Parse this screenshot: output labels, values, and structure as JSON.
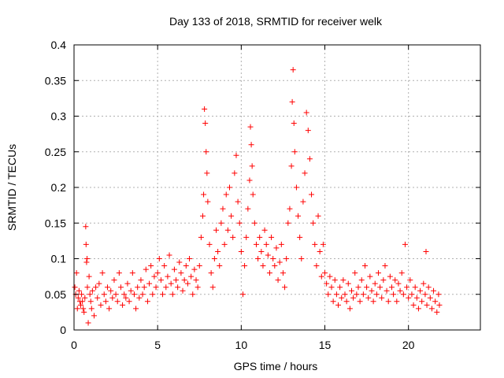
{
  "chart_data": {
    "type": "scatter",
    "title": "Day 133 of 2018, SRMTID for receiver welk",
    "xlabel": "GPS time / hours",
    "ylabel": "SRMTID / TECUs",
    "xlim": [
      0,
      24.3
    ],
    "ylim": [
      0,
      0.4
    ],
    "x_ticks": [
      0,
      5,
      10,
      15,
      20
    ],
    "x_tick_labels": [
      "0",
      "5",
      "10",
      "15",
      "20"
    ],
    "y_ticks": [
      0,
      0.05,
      0.1,
      0.15,
      0.2,
      0.25,
      0.3,
      0.35,
      0.4
    ],
    "y_tick_labels": [
      "0",
      "0.05",
      "0.1",
      "0.15",
      "0.2",
      "0.25",
      "0.3",
      "0.35",
      "0.4"
    ],
    "grid": true,
    "marker": "plus",
    "color": "#ff0000",
    "series": [
      {
        "name": "SRMTID",
        "points": [
          [
            0.05,
            0.06
          ],
          [
            0.1,
            0.05
          ],
          [
            0.15,
            0.08
          ],
          [
            0.2,
            0.03
          ],
          [
            0.25,
            0.045
          ],
          [
            0.3,
            0.055
          ],
          [
            0.35,
            0.04
          ],
          [
            0.4,
            0.035
          ],
          [
            0.45,
            0.05
          ],
          [
            0.5,
            0.04
          ],
          [
            0.55,
            0.03
          ],
          [
            0.6,
            0.025
          ],
          [
            0.65,
            0.045
          ],
          [
            0.7,
            0.145
          ],
          [
            0.72,
            0.12
          ],
          [
            0.75,
            0.095
          ],
          [
            0.78,
            0.1
          ],
          [
            0.8,
            0.06
          ],
          [
            0.85,
            0.01
          ],
          [
            0.9,
            0.075
          ],
          [
            0.95,
            0.05
          ],
          [
            1.0,
            0.04
          ],
          [
            1.05,
            0.03
          ],
          [
            1.1,
            0.055
          ],
          [
            1.2,
            0.02
          ],
          [
            1.3,
            0.06
          ],
          [
            1.4,
            0.045
          ],
          [
            1.5,
            0.065
          ],
          [
            1.6,
            0.035
          ],
          [
            1.7,
            0.08
          ],
          [
            1.8,
            0.05
          ],
          [
            1.9,
            0.04
          ],
          [
            2.0,
            0.06
          ],
          [
            2.1,
            0.03
          ],
          [
            2.2,
            0.055
          ],
          [
            2.3,
            0.045
          ],
          [
            2.4,
            0.07
          ],
          [
            2.5,
            0.05
          ],
          [
            2.6,
            0.04
          ],
          [
            2.7,
            0.08
          ],
          [
            2.8,
            0.06
          ],
          [
            2.9,
            0.035
          ],
          [
            3.0,
            0.05
          ],
          [
            3.1,
            0.045
          ],
          [
            3.2,
            0.065
          ],
          [
            3.3,
            0.04
          ],
          [
            3.4,
            0.055
          ],
          [
            3.5,
            0.08
          ],
          [
            3.6,
            0.05
          ],
          [
            3.7,
            0.03
          ],
          [
            3.8,
            0.06
          ],
          [
            3.9,
            0.045
          ],
          [
            4.0,
            0.07
          ],
          [
            4.1,
            0.05
          ],
          [
            4.2,
            0.06
          ],
          [
            4.3,
            0.085
          ],
          [
            4.4,
            0.04
          ],
          [
            4.5,
            0.065
          ],
          [
            4.6,
            0.09
          ],
          [
            4.7,
            0.05
          ],
          [
            4.8,
            0.075
          ],
          [
            4.9,
            0.06
          ],
          [
            5.0,
            0.08
          ],
          [
            5.1,
            0.1
          ],
          [
            5.2,
            0.07
          ],
          [
            5.3,
            0.05
          ],
          [
            5.4,
            0.09
          ],
          [
            5.5,
            0.06
          ],
          [
            5.6,
            0.075
          ],
          [
            5.7,
            0.105
          ],
          [
            5.8,
            0.065
          ],
          [
            5.9,
            0.05
          ],
          [
            6.0,
            0.085
          ],
          [
            6.1,
            0.07
          ],
          [
            6.2,
            0.06
          ],
          [
            6.3,
            0.095
          ],
          [
            6.4,
            0.08
          ],
          [
            6.5,
            0.055
          ],
          [
            6.6,
            0.07
          ],
          [
            6.7,
            0.09
          ],
          [
            6.8,
            0.065
          ],
          [
            6.9,
            0.1
          ],
          [
            7.0,
            0.075
          ],
          [
            7.1,
            0.05
          ],
          [
            7.2,
            0.085
          ],
          [
            7.3,
            0.07
          ],
          [
            7.4,
            0.06
          ],
          [
            7.5,
            0.09
          ],
          [
            7.6,
            0.13
          ],
          [
            7.7,
            0.16
          ],
          [
            7.75,
            0.19
          ],
          [
            7.8,
            0.31
          ],
          [
            7.85,
            0.29
          ],
          [
            7.9,
            0.25
          ],
          [
            7.95,
            0.22
          ],
          [
            8.0,
            0.18
          ],
          [
            8.1,
            0.12
          ],
          [
            8.2,
            0.08
          ],
          [
            8.3,
            0.06
          ],
          [
            8.4,
            0.1
          ],
          [
            8.5,
            0.14
          ],
          [
            8.6,
            0.11
          ],
          [
            8.7,
            0.09
          ],
          [
            8.8,
            0.15
          ],
          [
            8.9,
            0.17
          ],
          [
            9.0,
            0.12
          ],
          [
            9.1,
            0.19
          ],
          [
            9.2,
            0.14
          ],
          [
            9.3,
            0.2
          ],
          [
            9.4,
            0.16
          ],
          [
            9.5,
            0.13
          ],
          [
            9.6,
            0.22
          ],
          [
            9.7,
            0.245
          ],
          [
            9.8,
            0.18
          ],
          [
            9.9,
            0.15
          ],
          [
            10.0,
            0.11
          ],
          [
            10.1,
            0.05
          ],
          [
            10.2,
            0.09
          ],
          [
            10.3,
            0.13
          ],
          [
            10.4,
            0.17
          ],
          [
            10.5,
            0.21
          ],
          [
            10.55,
            0.285
          ],
          [
            10.6,
            0.26
          ],
          [
            10.65,
            0.23
          ],
          [
            10.7,
            0.19
          ],
          [
            10.8,
            0.15
          ],
          [
            10.9,
            0.12
          ],
          [
            11.0,
            0.1
          ],
          [
            11.1,
            0.13
          ],
          [
            11.2,
            0.11
          ],
          [
            11.3,
            0.09
          ],
          [
            11.4,
            0.14
          ],
          [
            11.5,
            0.12
          ],
          [
            11.6,
            0.105
          ],
          [
            11.7,
            0.08
          ],
          [
            11.8,
            0.13
          ],
          [
            11.9,
            0.1
          ],
          [
            12.0,
            0.09
          ],
          [
            12.1,
            0.115
          ],
          [
            12.2,
            0.07
          ],
          [
            12.3,
            0.095
          ],
          [
            12.4,
            0.12
          ],
          [
            12.5,
            0.08
          ],
          [
            12.6,
            0.06
          ],
          [
            12.7,
            0.1
          ],
          [
            12.8,
            0.15
          ],
          [
            12.9,
            0.17
          ],
          [
            13.0,
            0.23
          ],
          [
            13.05,
            0.32
          ],
          [
            13.1,
            0.365
          ],
          [
            13.15,
            0.29
          ],
          [
            13.2,
            0.25
          ],
          [
            13.3,
            0.2
          ],
          [
            13.4,
            0.16
          ],
          [
            13.5,
            0.13
          ],
          [
            13.6,
            0.1
          ],
          [
            13.7,
            0.18
          ],
          [
            13.8,
            0.22
          ],
          [
            13.9,
            0.305
          ],
          [
            14.0,
            0.28
          ],
          [
            14.1,
            0.24
          ],
          [
            14.2,
            0.19
          ],
          [
            14.3,
            0.15
          ],
          [
            14.4,
            0.12
          ],
          [
            14.5,
            0.09
          ],
          [
            14.6,
            0.16
          ],
          [
            14.7,
            0.11
          ],
          [
            14.8,
            0.075
          ],
          [
            14.9,
            0.12
          ],
          [
            15.0,
            0.08
          ],
          [
            15.1,
            0.065
          ],
          [
            15.2,
            0.05
          ],
          [
            15.3,
            0.075
          ],
          [
            15.4,
            0.06
          ],
          [
            15.5,
            0.04
          ],
          [
            15.6,
            0.07
          ],
          [
            15.7,
            0.05
          ],
          [
            15.8,
            0.035
          ],
          [
            15.9,
            0.06
          ],
          [
            16.0,
            0.045
          ],
          [
            16.1,
            0.07
          ],
          [
            16.2,
            0.05
          ],
          [
            16.3,
            0.04
          ],
          [
            16.4,
            0.065
          ],
          [
            16.5,
            0.03
          ],
          [
            16.6,
            0.055
          ],
          [
            16.7,
            0.045
          ],
          [
            16.8,
            0.08
          ],
          [
            16.9,
            0.05
          ],
          [
            17.0,
            0.06
          ],
          [
            17.1,
            0.04
          ],
          [
            17.2,
            0.07
          ],
          [
            17.3,
            0.05
          ],
          [
            17.4,
            0.09
          ],
          [
            17.5,
            0.06
          ],
          [
            17.6,
            0.045
          ],
          [
            17.7,
            0.075
          ],
          [
            17.8,
            0.055
          ],
          [
            17.9,
            0.04
          ],
          [
            18.0,
            0.065
          ],
          [
            18.1,
            0.05
          ],
          [
            18.2,
            0.08
          ],
          [
            18.3,
            0.06
          ],
          [
            18.4,
            0.045
          ],
          [
            18.5,
            0.07
          ],
          [
            18.6,
            0.09
          ],
          [
            18.7,
            0.055
          ],
          [
            18.8,
            0.04
          ],
          [
            18.9,
            0.075
          ],
          [
            19.0,
            0.06
          ],
          [
            19.1,
            0.05
          ],
          [
            19.2,
            0.07
          ],
          [
            19.3,
            0.04
          ],
          [
            19.4,
            0.065
          ],
          [
            19.5,
            0.055
          ],
          [
            19.6,
            0.08
          ],
          [
            19.7,
            0.05
          ],
          [
            19.8,
            0.12
          ],
          [
            19.9,
            0.06
          ],
          [
            20.0,
            0.045
          ],
          [
            20.1,
            0.07
          ],
          [
            20.2,
            0.05
          ],
          [
            20.3,
            0.035
          ],
          [
            20.4,
            0.06
          ],
          [
            20.5,
            0.045
          ],
          [
            20.6,
            0.03
          ],
          [
            20.7,
            0.055
          ],
          [
            20.8,
            0.04
          ],
          [
            20.9,
            0.065
          ],
          [
            21.0,
            0.05
          ],
          [
            21.05,
            0.11
          ],
          [
            21.1,
            0.035
          ],
          [
            21.2,
            0.06
          ],
          [
            21.3,
            0.045
          ],
          [
            21.4,
            0.03
          ],
          [
            21.5,
            0.055
          ],
          [
            21.6,
            0.04
          ],
          [
            21.7,
            0.025
          ],
          [
            21.8,
            0.05
          ],
          [
            21.85,
            0.035
          ]
        ]
      }
    ]
  }
}
